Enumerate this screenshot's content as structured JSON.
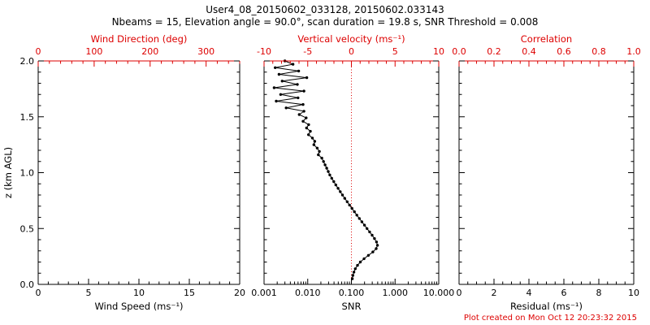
{
  "header": {
    "title": "User4_08_20150602_033128, 20150602.033143",
    "subtitle": "Nbeams = 15, Elevation angle = 90.0°, scan duration = 19.8 s, SNR Threshold = 0.008"
  },
  "footer": {
    "credit": "Plot created on Mon Oct 12 20:23:32 2015"
  },
  "colors": {
    "primary_axis": "#000000",
    "secondary_axis": "#dd0000",
    "marker": "#000000",
    "background": "#ffffff"
  },
  "chart_data": [
    {
      "id": "wind-speed-panel",
      "type": "scatter",
      "xlabel": "Wind Speed (ms⁻¹)",
      "x_scale": "linear",
      "x_range": [
        0,
        20
      ],
      "x_ticks": [
        0,
        5,
        10,
        15,
        20
      ],
      "x_tick_labels": [
        "0",
        "5",
        "10",
        "15",
        "20"
      ],
      "x_minor": 1,
      "top_axis": {
        "label": "Wind Direction (deg)",
        "range": [
          0,
          360
        ],
        "ticks": [
          0,
          100,
          200,
          300
        ],
        "tick_labels": [
          "0",
          "100",
          "200",
          "300"
        ],
        "minor": 20
      },
      "ylabel": "z (km AGL)",
      "y_range": [
        0,
        2
      ],
      "y_ticks": [
        0,
        0.5,
        1,
        1.5,
        2
      ],
      "y_tick_labels": [
        "0.0",
        "0.5",
        "1.0",
        "1.5",
        "2.0"
      ],
      "y_minor": 0.1,
      "profile": []
    },
    {
      "id": "snr-panel",
      "type": "line-scatter",
      "xlabel": "SNR",
      "x_scale": "log",
      "x_range": [
        0.001,
        10
      ],
      "x_ticks": [
        0.001,
        0.01,
        0.1,
        1,
        10
      ],
      "x_tick_labels": [
        "0.001",
        "0.010",
        "0.100",
        "1.000",
        "10.000"
      ],
      "top_axis": {
        "label": "Vertical velocity (ms⁻¹)",
        "range": [
          -10,
          10
        ],
        "ticks": [
          -10,
          -5,
          0,
          5,
          10
        ],
        "tick_labels": [
          "-10",
          "-5",
          "0",
          "5",
          "10"
        ],
        "minor": 1
      },
      "y_range": [
        0,
        2
      ],
      "y_ticks": [
        0,
        0.5,
        1,
        1.5,
        2
      ],
      "y_minor": 0.1,
      "reference_line": {
        "x": 0.1,
        "color": "#dd0000",
        "style": "dotted"
      },
      "profile": [
        [
          2.0,
          0.003
        ],
        [
          1.97,
          0.0046
        ],
        [
          1.94,
          0.0018
        ],
        [
          1.91,
          0.0062
        ],
        [
          1.88,
          0.0022
        ],
        [
          1.85,
          0.0095
        ],
        [
          1.82,
          0.0026
        ],
        [
          1.79,
          0.0058
        ],
        [
          1.76,
          0.0017
        ],
        [
          1.73,
          0.0082
        ],
        [
          1.7,
          0.0024
        ],
        [
          1.67,
          0.006
        ],
        [
          1.64,
          0.0019
        ],
        [
          1.61,
          0.0078
        ],
        [
          1.58,
          0.0032
        ],
        [
          1.55,
          0.0082
        ],
        [
          1.52,
          0.0064
        ],
        [
          1.49,
          0.0092
        ],
        [
          1.46,
          0.0078
        ],
        [
          1.43,
          0.0105
        ],
        [
          1.4,
          0.0094
        ],
        [
          1.37,
          0.0115
        ],
        [
          1.34,
          0.0104
        ],
        [
          1.31,
          0.0128
        ],
        [
          1.28,
          0.0145
        ],
        [
          1.25,
          0.0138
        ],
        [
          1.22,
          0.0165
        ],
        [
          1.19,
          0.0185
        ],
        [
          1.16,
          0.0175
        ],
        [
          1.13,
          0.021
        ],
        [
          1.1,
          0.023
        ],
        [
          1.07,
          0.025
        ],
        [
          1.04,
          0.0272
        ],
        [
          1.01,
          0.0295
        ],
        [
          0.98,
          0.032
        ],
        [
          0.95,
          0.0355
        ],
        [
          0.92,
          0.0395
        ],
        [
          0.89,
          0.044
        ],
        [
          0.86,
          0.0495
        ],
        [
          0.83,
          0.0555
        ],
        [
          0.8,
          0.0625
        ],
        [
          0.77,
          0.0705
        ],
        [
          0.74,
          0.08
        ],
        [
          0.71,
          0.0905
        ],
        [
          0.68,
          0.103
        ],
        [
          0.65,
          0.117
        ],
        [
          0.62,
          0.133
        ],
        [
          0.59,
          0.152
        ],
        [
          0.56,
          0.174
        ],
        [
          0.53,
          0.199
        ],
        [
          0.5,
          0.228
        ],
        [
          0.47,
          0.261
        ],
        [
          0.44,
          0.298
        ],
        [
          0.41,
          0.338
        ],
        [
          0.38,
          0.375
        ],
        [
          0.35,
          0.395
        ],
        [
          0.32,
          0.37
        ],
        [
          0.29,
          0.31
        ],
        [
          0.26,
          0.245
        ],
        [
          0.23,
          0.195
        ],
        [
          0.2,
          0.16
        ],
        [
          0.17,
          0.138
        ],
        [
          0.14,
          0.123
        ],
        [
          0.11,
          0.114
        ],
        [
          0.08,
          0.108
        ],
        [
          0.05,
          0.105
        ]
      ]
    },
    {
      "id": "residual-panel",
      "type": "scatter",
      "xlabel": "Residual (ms⁻¹)",
      "x_scale": "linear",
      "x_range": [
        0,
        10
      ],
      "x_ticks": [
        0,
        2,
        4,
        6,
        8,
        10
      ],
      "x_tick_labels": [
        "0",
        "2",
        "4",
        "6",
        "8",
        "10"
      ],
      "x_minor": 0.5,
      "top_axis": {
        "label": "Correlation",
        "range": [
          0,
          1
        ],
        "ticks": [
          0,
          0.2,
          0.4,
          0.6,
          0.8,
          1
        ],
        "tick_labels": [
          "0.0",
          "0.2",
          "0.4",
          "0.6",
          "0.8",
          "1.0"
        ],
        "minor": 0.05
      },
      "y_range": [
        0,
        2
      ],
      "y_ticks": [
        0,
        0.5,
        1,
        1.5,
        2
      ],
      "y_minor": 0.1,
      "profile": []
    }
  ]
}
